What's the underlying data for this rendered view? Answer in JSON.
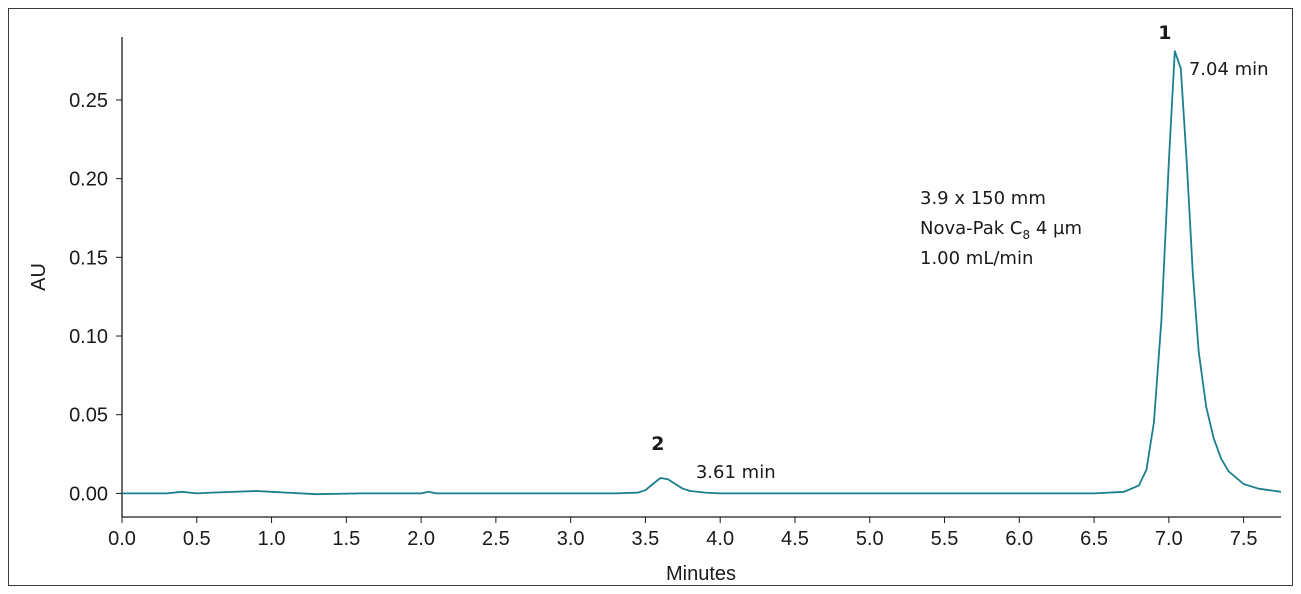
{
  "colors": {
    "trace": "#1b7f8e",
    "axis": "#1a1a1a"
  },
  "chart_data": {
    "type": "line",
    "title": "",
    "xlabel": "Minutes",
    "ylabel": "AU",
    "xlim": [
      0.0,
      7.75
    ],
    "ylim": [
      -0.015,
      0.29
    ],
    "xticks": [
      "0.0",
      "0.5",
      "1.0",
      "1.5",
      "2.0",
      "2.5",
      "3.0",
      "3.5",
      "4.0",
      "4.5",
      "5.0",
      "5.5",
      "6.0",
      "6.5",
      "7.0",
      "7.5"
    ],
    "yticks": [
      "0.00",
      "0.05",
      "0.10",
      "0.15",
      "0.20",
      "0.25"
    ],
    "grid": false,
    "series": [
      {
        "x": [
          0.0,
          0.3,
          0.4,
          0.5,
          0.6,
          0.9,
          1.0,
          1.1,
          1.3,
          1.6,
          2.0,
          2.05,
          2.1,
          2.5,
          3.0,
          3.3,
          3.45,
          3.5,
          3.55,
          3.6,
          3.65,
          3.7,
          3.75,
          3.8,
          3.9,
          4.0,
          4.5,
          5.0,
          5.5,
          6.0,
          6.5,
          6.7,
          6.8,
          6.85,
          6.9,
          6.95,
          7.0,
          7.04,
          7.08,
          7.12,
          7.16,
          7.2,
          7.25,
          7.3,
          7.35,
          7.4,
          7.5,
          7.6,
          7.75
        ],
        "y": [
          0.0,
          0.0,
          0.001,
          0.0,
          0.0005,
          0.0015,
          0.001,
          0.0005,
          -0.0005,
          0.0,
          0.0,
          0.001,
          0.0,
          0.0,
          0.0,
          0.0,
          0.0005,
          0.002,
          0.006,
          0.0098,
          0.009,
          0.006,
          0.003,
          0.0015,
          0.0005,
          0.0,
          0.0,
          0.0,
          0.0,
          0.0,
          0.0,
          0.001,
          0.005,
          0.015,
          0.045,
          0.11,
          0.21,
          0.281,
          0.27,
          0.21,
          0.14,
          0.09,
          0.055,
          0.035,
          0.022,
          0.014,
          0.006,
          0.003,
          0.001
        ]
      }
    ],
    "annotations": [
      {
        "id": "peak2-num",
        "text": "2",
        "x": 3.61,
        "y": 0.0098
      },
      {
        "id": "peak2-time",
        "text": "3.61 min",
        "x": 3.61,
        "y": 0.0098
      },
      {
        "id": "peak1-num",
        "text": "1",
        "x": 7.04,
        "y": 0.281
      },
      {
        "id": "peak1-time",
        "text": "7.04 min",
        "x": 7.04,
        "y": 0.281
      }
    ],
    "info_box": [
      "3.9 x 150 mm",
      "Nova-Pak C",
      "8",
      " 4 µm",
      "1.00 mL/min"
    ]
  }
}
